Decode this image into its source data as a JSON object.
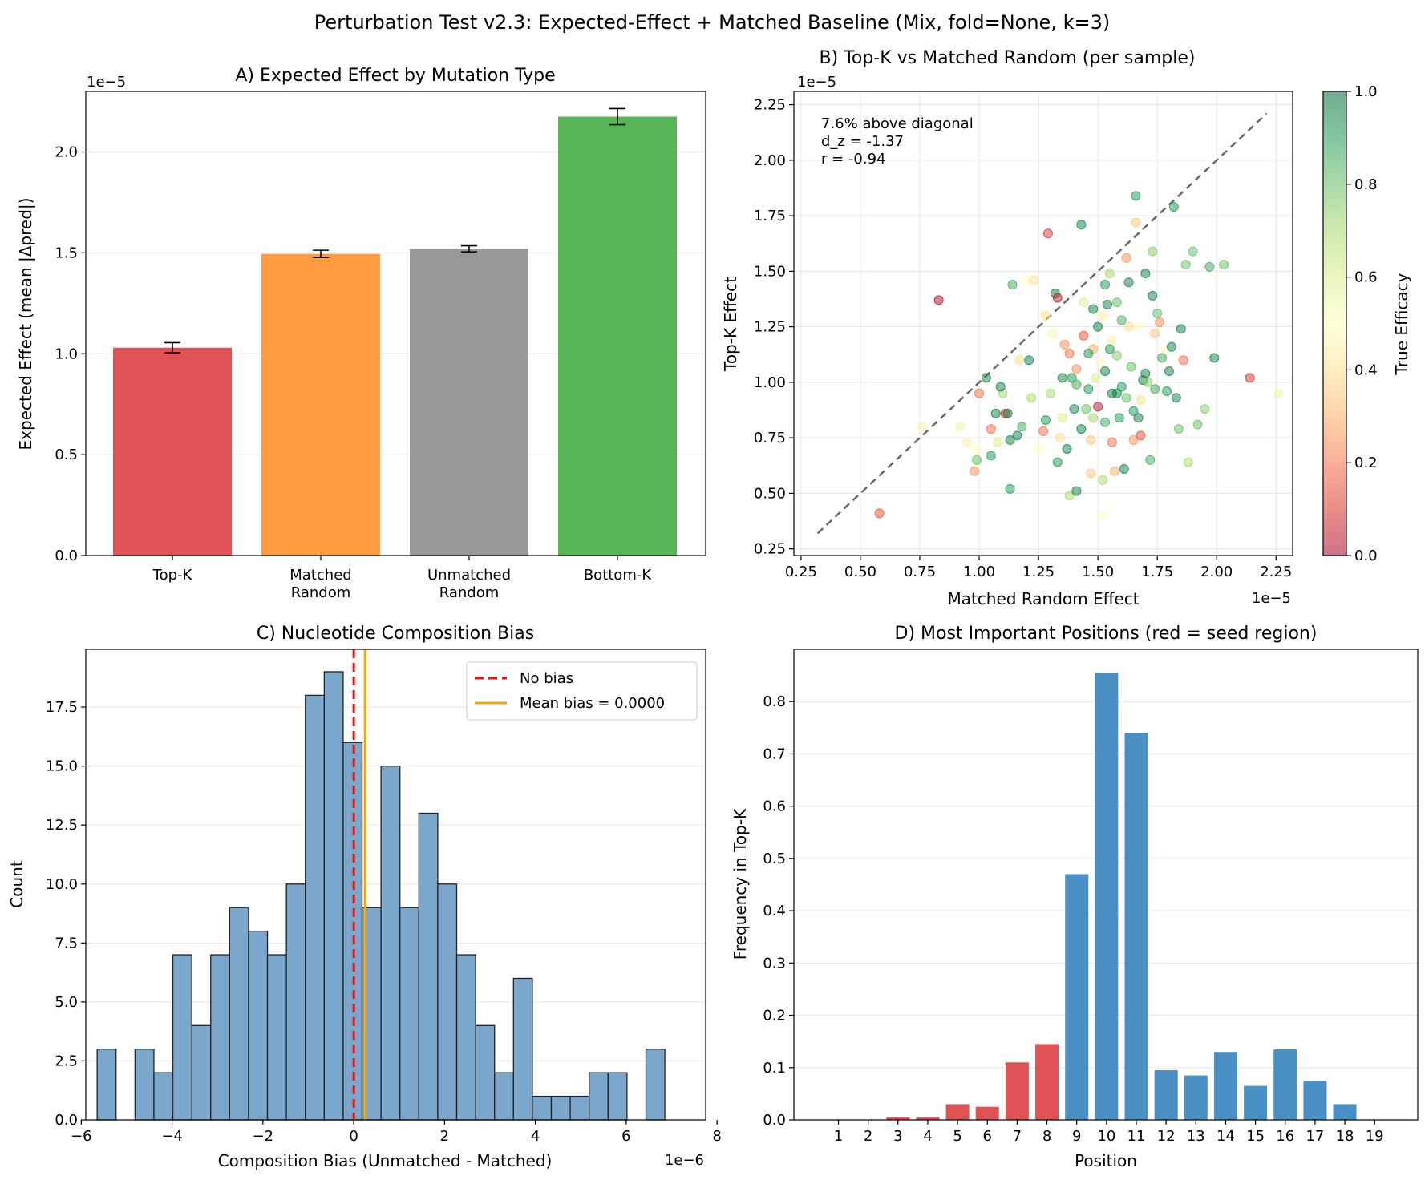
{
  "suptitle": "Perturbation Test v2.3: Expected-Effect + Matched Baseline (Mix, fold=None, k=3)",
  "chart_data": [
    {
      "id": "A",
      "type": "bar",
      "title": "A) Expected Effect by Mutation Type",
      "ylabel": "Expected Effect (mean |Δpred|)",
      "xlabel": "",
      "offset_label": "1e−5",
      "ylim": [
        0,
        2.3
      ],
      "yticks": [
        0.0,
        0.5,
        1.0,
        1.5,
        2.0
      ],
      "ytick_labels": [
        "0.0",
        "0.5",
        "1.0",
        "1.5",
        "2.0"
      ],
      "categories": [
        [
          "Top-K"
        ],
        [
          "Matched",
          "Random"
        ],
        [
          "Unmatched",
          "Random"
        ],
        [
          "Bottom-K"
        ]
      ],
      "values": [
        1.03,
        1.495,
        1.52,
        2.175
      ],
      "errors": [
        0.025,
        0.018,
        0.015,
        0.04
      ],
      "colors": [
        "#e05355",
        "#ff9b40",
        "#999999",
        "#57b556"
      ],
      "grid": "y"
    },
    {
      "id": "B",
      "type": "scatter",
      "title": "B) Top-K vs Matched Random (per sample)",
      "xlabel": "Matched Random Effect",
      "ylabel": "Top-K Effect",
      "x_offset_label": "1e−5",
      "y_offset_label": "1e−5",
      "xlim": [
        0.22,
        2.32
      ],
      "ylim": [
        0.22,
        2.31
      ],
      "xticks": [
        0.25,
        0.5,
        0.75,
        1.0,
        1.25,
        1.5,
        1.75,
        2.0,
        2.25
      ],
      "xtick_labels": [
        "0.25",
        "0.50",
        "0.75",
        "1.00",
        "1.25",
        "1.50",
        "1.75",
        "2.00",
        "2.25"
      ],
      "yticks": [
        0.25,
        0.5,
        0.75,
        1.0,
        1.25,
        1.5,
        1.75,
        2.0,
        2.25
      ],
      "ytick_labels": [
        "0.25",
        "0.50",
        "0.75",
        "1.00",
        "1.25",
        "1.50",
        "1.75",
        "2.00",
        "2.25"
      ],
      "diagonal": [
        0.32,
        2.21
      ],
      "annotation": [
        "7.6% above diagonal",
        "d_z = -1.37",
        "r = -0.94"
      ],
      "colorbar_label": "True Efficacy",
      "colorbar_ticks": [
        "0.0",
        "0.2",
        "0.4",
        "0.6",
        "0.8",
        "1.0"
      ],
      "points": [
        [
          0.58,
          0.41,
          0.15
        ],
        [
          0.83,
          1.37,
          0.02
        ],
        [
          0.76,
          0.8,
          0.45
        ],
        [
          0.92,
          0.8,
          0.55
        ],
        [
          0.95,
          0.73,
          0.45
        ],
        [
          0.98,
          0.6,
          0.25
        ],
        [
          0.99,
          0.65,
          0.8
        ],
        [
          0.99,
          0.7,
          0.5
        ],
        [
          1.0,
          0.95,
          0.2
        ],
        [
          1.03,
          1.02,
          0.95
        ],
        [
          1.05,
          0.79,
          0.2
        ],
        [
          1.07,
          0.86,
          0.95
        ],
        [
          1.08,
          0.73,
          0.6
        ],
        [
          1.1,
          0.95,
          0.7
        ],
        [
          1.11,
          0.86,
          0.1
        ],
        [
          1.13,
          0.74,
          0.95
        ],
        [
          1.13,
          0.52,
          0.9
        ],
        [
          1.14,
          1.44,
          0.85
        ],
        [
          1.17,
          1.1,
          0.4
        ],
        [
          1.18,
          0.8,
          0.85
        ],
        [
          1.2,
          1.46,
          0.5
        ],
        [
          1.23,
          1.46,
          0.4
        ],
        [
          1.25,
          0.7,
          0.5
        ],
        [
          1.27,
          0.78,
          0.2
        ],
        [
          1.28,
          0.83,
          0.9
        ],
        [
          1.29,
          1.67,
          0.1
        ],
        [
          1.3,
          0.95,
          0.7
        ],
        [
          1.31,
          1.22,
          0.45
        ],
        [
          1.32,
          1.4,
          0.95
        ],
        [
          1.33,
          1.38,
          0.05
        ],
        [
          1.33,
          0.64,
          0.9
        ],
        [
          1.34,
          0.75,
          0.4
        ],
        [
          1.35,
          1.02,
          0.95
        ],
        [
          1.36,
          1.17,
          0.25
        ],
        [
          1.37,
          0.7,
          0.95
        ],
        [
          1.38,
          0.49,
          0.7
        ],
        [
          1.39,
          1.02,
          0.9
        ],
        [
          1.4,
          0.88,
          0.95
        ],
        [
          1.41,
          1.06,
          0.25
        ],
        [
          1.41,
          0.51,
          0.95
        ],
        [
          1.43,
          1.71,
          0.95
        ],
        [
          1.44,
          1.21,
          0.15
        ],
        [
          1.45,
          0.88,
          0.8
        ],
        [
          1.46,
          0.97,
          0.9
        ],
        [
          1.47,
          0.74,
          0.35
        ],
        [
          1.48,
          0.84,
          0.7
        ],
        [
          1.48,
          1.15,
          0.3
        ],
        [
          1.5,
          1.25,
          0.95
        ],
        [
          1.5,
          0.89,
          0.05
        ],
        [
          1.51,
          1.09,
          0.5
        ],
        [
          1.52,
          0.56,
          0.7
        ],
        [
          1.53,
          1.05,
          0.95
        ],
        [
          1.54,
          1.35,
          0.95
        ],
        [
          1.55,
          1.49,
          0.7
        ],
        [
          1.56,
          0.73,
          0.2
        ],
        [
          1.57,
          0.6,
          0.3
        ],
        [
          1.58,
          1.36,
          0.8
        ],
        [
          1.59,
          0.84,
          0.9
        ],
        [
          1.6,
          1.28,
          0.85
        ],
        [
          1.61,
          0.61,
          0.95
        ],
        [
          1.62,
          1.56,
          0.25
        ],
        [
          1.63,
          1.45,
          0.95
        ],
        [
          1.64,
          1.07,
          0.8
        ],
        [
          1.65,
          0.74,
          0.25
        ],
        [
          1.66,
          1.84,
          0.9
        ],
        [
          1.67,
          0.84,
          0.95
        ],
        [
          1.68,
          0.92,
          0.4
        ],
        [
          1.69,
          1.01,
          0.95
        ],
        [
          1.7,
          1.49,
          0.95
        ],
        [
          1.72,
          0.65,
          0.85
        ],
        [
          1.73,
          1.39,
          0.95
        ],
        [
          1.75,
          1.31,
          0.8
        ],
        [
          1.76,
          1.27,
          0.25
        ],
        [
          1.78,
          1.14,
          0.5
        ],
        [
          1.79,
          0.96,
          0.9
        ],
        [
          1.8,
          1.05,
          0.95
        ],
        [
          1.82,
          1.79,
          0.9
        ],
        [
          1.83,
          0.93,
          0.95
        ],
        [
          1.84,
          0.79,
          0.8
        ],
        [
          1.85,
          1.24,
          0.95
        ],
        [
          1.86,
          1.1,
          0.2
        ],
        [
          1.87,
          1.53,
          0.8
        ],
        [
          1.88,
          0.64,
          0.7
        ],
        [
          1.9,
          1.59,
          0.8
        ],
        [
          1.92,
          0.81,
          0.8
        ],
        [
          1.95,
          0.88,
          0.75
        ],
        [
          1.97,
          1.52,
          0.85
        ],
        [
          1.99,
          1.11,
          0.95
        ],
        [
          2.03,
          1.53,
          0.8
        ],
        [
          2.14,
          1.02,
          0.1
        ],
        [
          2.26,
          0.95,
          0.55
        ],
        [
          1.28,
          1.3,
          0.4
        ],
        [
          1.22,
          0.93,
          0.7
        ],
        [
          1.56,
          1.19,
          0.45
        ],
        [
          1.44,
          1.36,
          0.6
        ],
        [
          1.52,
          1.3,
          0.45
        ],
        [
          1.6,
          0.98,
          0.9
        ],
        [
          1.67,
          1.25,
          0.5
        ],
        [
          1.71,
          1.0,
          0.75
        ],
        [
          1.35,
          0.84,
          0.6
        ],
        [
          1.46,
          1.13,
          0.9
        ],
        [
          1.53,
          0.82,
          0.85
        ],
        [
          1.58,
          1.12,
          0.75
        ],
        [
          1.62,
          0.93,
          0.8
        ],
        [
          1.74,
          1.22,
          0.35
        ],
        [
          1.41,
          0.99,
          0.85
        ],
        [
          1.49,
          1.02,
          0.6
        ],
        [
          1.55,
          1.15,
          0.9
        ],
        [
          1.63,
          1.25,
          0.4
        ],
        [
          1.68,
          0.76,
          0.15
        ],
        [
          1.38,
          1.13,
          0.2
        ],
        [
          1.43,
          0.79,
          0.95
        ],
        [
          1.12,
          0.86,
          0.95
        ],
        [
          1.05,
          0.67,
          0.9
        ],
        [
          1.09,
          0.98,
          0.95
        ],
        [
          1.16,
          0.76,
          0.95
        ],
        [
          1.21,
          1.1,
          0.95
        ],
        [
          1.48,
          1.33,
          0.95
        ],
        [
          1.53,
          1.44,
          0.9
        ],
        [
          1.56,
          0.95,
          0.95
        ],
        [
          1.66,
          1.72,
          0.35
        ],
        [
          1.73,
          1.59,
          0.75
        ],
        [
          1.77,
          1.11,
          0.85
        ],
        [
          1.81,
          1.16,
          0.95
        ],
        [
          1.58,
          0.95,
          0.95
        ],
        [
          1.65,
          0.87,
          0.9
        ],
        [
          1.7,
          1.04,
          0.95
        ],
        [
          1.74,
          0.97,
          0.85
        ],
        [
          1.47,
          0.59,
          0.35
        ],
        [
          1.52,
          0.4,
          0.5
        ]
      ]
    },
    {
      "id": "C",
      "type": "histogram",
      "title": "C) Nucleotide Composition Bias",
      "xlabel": "Composition Bias (Unmatched - Matched)",
      "ylabel": "Count",
      "x_offset_label": "1e−6",
      "xlim": [
        -5.9,
        7.75
      ],
      "ylim": [
        0,
        19.95
      ],
      "xticks": [
        -6,
        -4,
        -2,
        0,
        2,
        4,
        6,
        8
      ],
      "xtick_labels": [
        "−6",
        "−4",
        "−2",
        "0",
        "2",
        "4",
        "6",
        "8"
      ],
      "yticks": [
        0,
        2.5,
        5,
        7.5,
        10,
        12.5,
        15,
        17.5
      ],
      "ytick_labels": [
        "0.0",
        "2.5",
        "5.0",
        "7.5",
        "10.0",
        "12.5",
        "15.0",
        "17.5"
      ],
      "bin_start": -5.65,
      "bin_width": 0.4167,
      "counts": [
        3,
        0,
        3,
        2,
        7,
        4,
        7,
        9,
        8,
        7,
        10,
        18,
        19,
        16,
        9,
        15,
        9,
        13,
        10,
        7,
        4,
        2,
        6,
        1,
        1,
        1,
        2,
        2,
        0,
        3
      ],
      "lines": [
        {
          "label": "No bias",
          "x": 0.0,
          "color": "#ee1111",
          "style": "dashed"
        },
        {
          "label": "Mean bias = 0.0000",
          "x": 0.25,
          "color": "#ffa500",
          "style": "solid"
        }
      ],
      "legend": "top-right",
      "grid": "y"
    },
    {
      "id": "D",
      "type": "bar",
      "title": "D) Most Important Positions (red = seed region)",
      "xlabel": "Position",
      "ylabel": "Frequency in Top-K",
      "ylim": [
        0,
        0.9
      ],
      "yticks": [
        0.0,
        0.1,
        0.2,
        0.3,
        0.4,
        0.5,
        0.6,
        0.7,
        0.8
      ],
      "ytick_labels": [
        "0.0",
        "0.1",
        "0.2",
        "0.3",
        "0.4",
        "0.5",
        "0.6",
        "0.7",
        "0.8"
      ],
      "categories": [
        "1",
        "2",
        "3",
        "4",
        "5",
        "6",
        "7",
        "8",
        "9",
        "10",
        "11",
        "12",
        "13",
        "14",
        "15",
        "16",
        "17",
        "18",
        "19"
      ],
      "values": [
        0.0,
        0.0,
        0.005,
        0.005,
        0.03,
        0.025,
        0.11,
        0.145,
        0.47,
        0.855,
        0.74,
        0.095,
        0.085,
        0.13,
        0.065,
        0.135,
        0.075,
        0.03,
        0.0
      ],
      "seed_region": [
        false,
        false,
        true,
        true,
        true,
        true,
        true,
        true,
        false,
        false,
        false,
        false,
        false,
        false,
        false,
        false,
        false,
        false,
        false
      ],
      "seed_color": "#e05355",
      "other_color": "#4a90c4",
      "grid": "y"
    }
  ]
}
